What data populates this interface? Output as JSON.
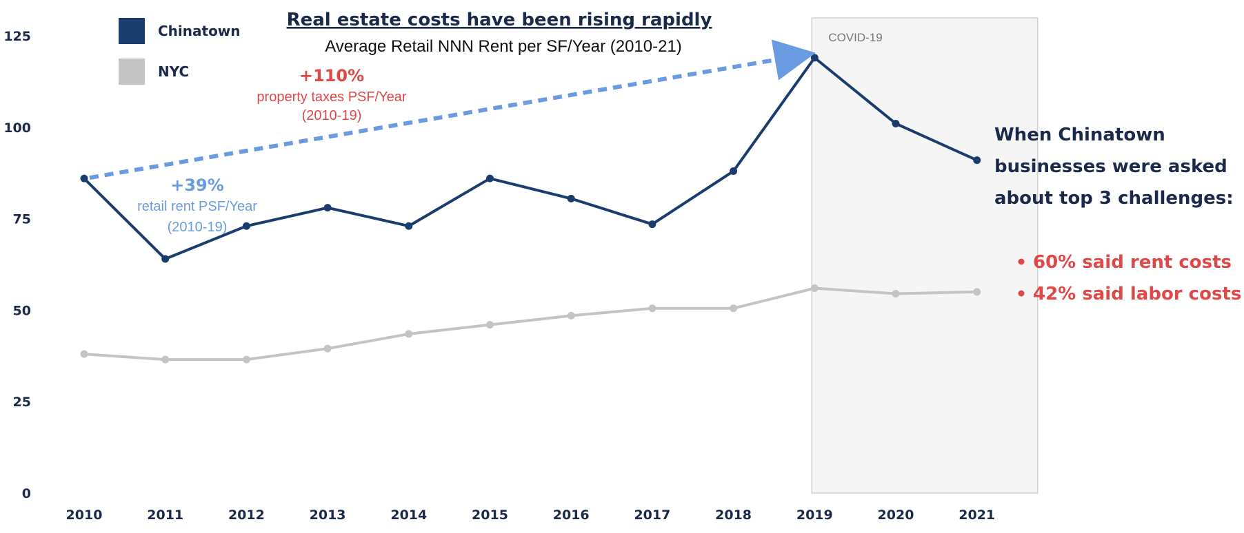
{
  "chart_data": {
    "type": "line",
    "title": "Real estate costs have been rising rapidly",
    "subtitle": "Average Retail NNN Rent per SF/Year (2010-21)",
    "categories": [
      "2010",
      "2011",
      "2012",
      "2013",
      "2014",
      "2015",
      "2016",
      "2017",
      "2018",
      "2019",
      "2020",
      "2021"
    ],
    "ylim": [
      0,
      125
    ],
    "yticks": [
      "0",
      "25",
      "50",
      "75",
      "100",
      "125"
    ],
    "grid": false,
    "legend_position": "top-left",
    "series": [
      {
        "name": "Chinatown",
        "color": "#1b3d6e",
        "values": [
          86,
          64,
          73,
          78,
          73,
          86,
          80.5,
          73.5,
          88,
          119,
          101,
          91
        ]
      },
      {
        "name": "NYC",
        "color": "#c4c4c4",
        "values": [
          38,
          36.5,
          36.5,
          39.5,
          43.5,
          46,
          48.5,
          50.5,
          50.5,
          56,
          54.5,
          55
        ]
      }
    ],
    "shaded_region": {
      "label": "COVID-19",
      "from": "2019",
      "to": "2021"
    },
    "trend_arrow": {
      "from": {
        "x": "2010",
        "y": 86
      },
      "to": {
        "x": "2019",
        "y": 119
      },
      "color": "#6a9be0"
    },
    "annotations": {
      "taxes_pct": "+110%",
      "taxes_label": "property taxes PSF/Year",
      "taxes_period": "(2010-19)",
      "rent_pct": "+39%",
      "rent_label": "retail rent PSF/Year",
      "rent_period": "(2010-19)"
    },
    "side_note": {
      "lines": [
        "When Chinatown",
        "businesses were asked",
        "about top 3 challenges:"
      ],
      "bullets": [
        "60% said rent costs",
        "42% said labor costs"
      ]
    }
  }
}
